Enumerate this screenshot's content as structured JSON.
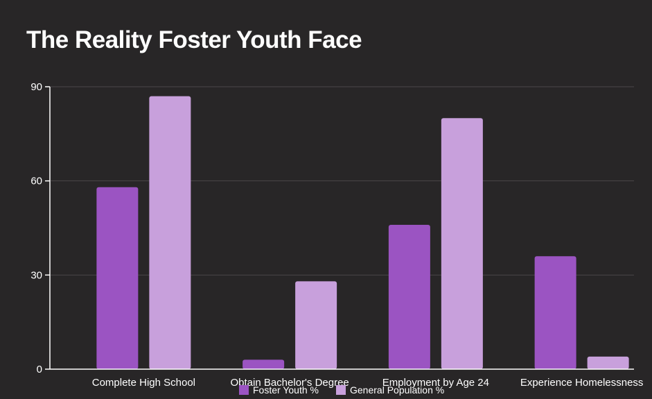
{
  "chart_data": {
    "type": "bar",
    "title": "The Reality Foster Youth Face",
    "categories": [
      "Complete High School",
      "Obtain Bachelor's Degree",
      "Employment by Age 24",
      "Experience Homelessness"
    ],
    "series": [
      {
        "name": "Foster Youth %",
        "values": [
          58,
          3,
          46,
          36
        ],
        "color": "#9b54c2"
      },
      {
        "name": "General Population %",
        "values": [
          87,
          28,
          80,
          4
        ],
        "color": "#c8a0dc"
      }
    ],
    "yticks": [
      0,
      30,
      60,
      90
    ],
    "ylim": [
      0,
      90
    ],
    "grid": true,
    "legend_position": "bottom",
    "background": "#282627",
    "text_color": "#ffffff",
    "grid_color": "#4a4748"
  }
}
